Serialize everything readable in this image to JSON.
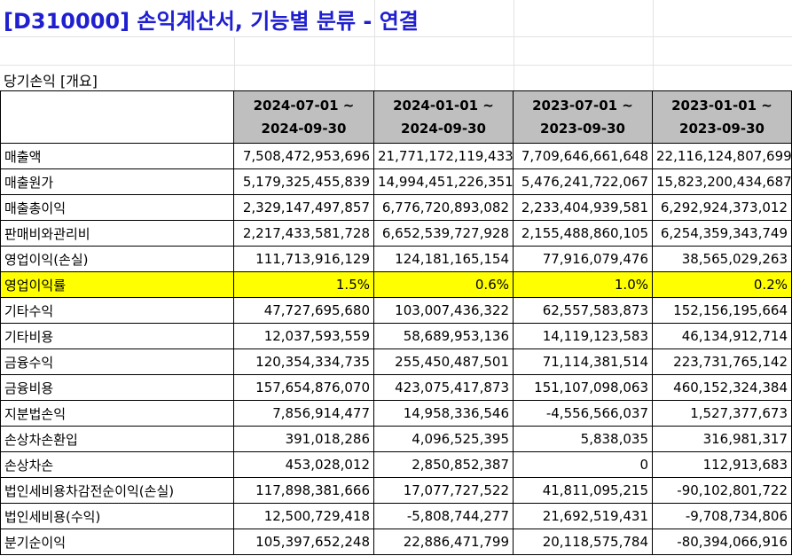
{
  "title": "[D310000] 손익계산서, 기능별 분류 - 연결",
  "subtitle": "당기손익 [개요]",
  "columns": [
    {
      "line1": "2024-07-01 ~",
      "line2": "2024-09-30"
    },
    {
      "line1": "2024-01-01 ~",
      "line2": "2024-09-30"
    },
    {
      "line1": "2023-07-01 ~",
      "line2": "2023-09-30"
    },
    {
      "line1": "2023-01-01 ~",
      "line2": "2023-09-30"
    }
  ],
  "rows": [
    {
      "label": "매출액",
      "values": [
        "7,508,472,953,696",
        "21,771,172,119,433",
        "7,709,646,661,648",
        "22,116,124,807,699"
      ]
    },
    {
      "label": "매출원가",
      "values": [
        "5,179,325,455,839",
        "14,994,451,226,351",
        "5,476,241,722,067",
        "15,823,200,434,687"
      ]
    },
    {
      "label": "매출총이익",
      "values": [
        "2,329,147,497,857",
        "6,776,720,893,082",
        "2,233,404,939,581",
        "6,292,924,373,012"
      ]
    },
    {
      "label": "판매비와관리비",
      "values": [
        "2,217,433,581,728",
        "6,652,539,727,928",
        "2,155,488,860,105",
        "6,254,359,343,749"
      ]
    },
    {
      "label": "영업이익(손실)",
      "values": [
        "111,713,916,129",
        "124,181,165,154",
        "77,916,079,476",
        "38,565,029,263"
      ]
    },
    {
      "label": "영업이익률",
      "values": [
        "1.5%",
        "0.6%",
        "1.0%",
        "0.2%"
      ],
      "highlight": true
    },
    {
      "label": "기타수익",
      "values": [
        "47,727,695,680",
        "103,007,436,322",
        "62,557,583,873",
        "152,156,195,664"
      ]
    },
    {
      "label": "기타비용",
      "values": [
        "12,037,593,559",
        "58,689,953,136",
        "14,119,123,583",
        "46,134,912,714"
      ]
    },
    {
      "label": "금융수익",
      "values": [
        "120,354,334,735",
        "255,450,487,501",
        "71,114,381,514",
        "223,731,765,142"
      ]
    },
    {
      "label": "금융비용",
      "values": [
        "157,654,876,070",
        "423,075,417,873",
        "151,107,098,063",
        "460,152,324,384"
      ]
    },
    {
      "label": "지분법손익",
      "values": [
        "7,856,914,477",
        "14,958,336,546",
        "-4,556,566,037",
        "1,527,377,673"
      ]
    },
    {
      "label": "손상차손환입",
      "values": [
        "391,018,286",
        "4,096,525,395",
        "5,838,035",
        "316,981,317"
      ]
    },
    {
      "label": "손상차손",
      "values": [
        "453,028,012",
        "2,850,852,387",
        "0",
        "112,913,683"
      ]
    },
    {
      "label": "법인세비용차감전순이익(손실)",
      "values": [
        "117,898,381,666",
        "17,077,727,522",
        "41,811,095,215",
        "-90,102,801,722"
      ]
    },
    {
      "label": "법인세비용(수익)",
      "values": [
        "12,500,729,418",
        "-5,808,744,277",
        "21,692,519,431",
        "-9,708,734,806"
      ]
    },
    {
      "label": "분기순이익",
      "values": [
        "105,397,652,248",
        "22,886,471,799",
        "20,118,575,784",
        "-80,394,066,916"
      ]
    }
  ],
  "colors": {
    "title": "#1f1fd0",
    "header_bg": "#bfbfbf",
    "highlight_bg": "#ffff00"
  }
}
